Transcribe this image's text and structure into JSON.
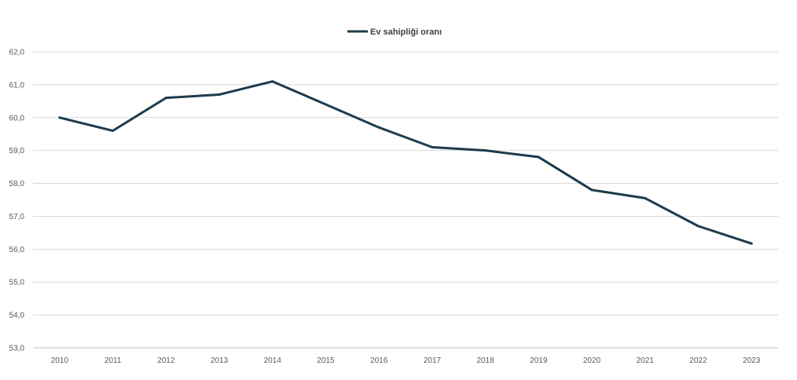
{
  "chart_data": {
    "type": "line",
    "title": "",
    "xlabel": "",
    "ylabel": "",
    "legend_position": "top-center",
    "grid": true,
    "x": [
      "2010",
      "2011",
      "2012",
      "2013",
      "2014",
      "2015",
      "2016",
      "2017",
      "2018",
      "2019",
      "2020",
      "2021",
      "2022",
      "2023"
    ],
    "series": [
      {
        "name": "Ev sahipliği oranı",
        "color": "#1f3b4d",
        "values": [
          60.0,
          59.6,
          60.6,
          60.7,
          61.1,
          60.4,
          59.7,
          59.1,
          59.0,
          58.8,
          57.8,
          57.55,
          56.7,
          56.17
        ]
      }
    ],
    "ylim": [
      53,
      62
    ],
    "yticks": [
      53,
      54,
      55,
      56,
      57,
      58,
      59,
      60,
      61,
      62
    ],
    "ytick_labels": [
      "53,0",
      "54,0",
      "55,0",
      "56,0",
      "57,0",
      "58,0",
      "59,0",
      "60,0",
      "61,0",
      "62,0"
    ],
    "gridline_color": "#d9d9d9",
    "axis_color": "#bfbfbf"
  }
}
